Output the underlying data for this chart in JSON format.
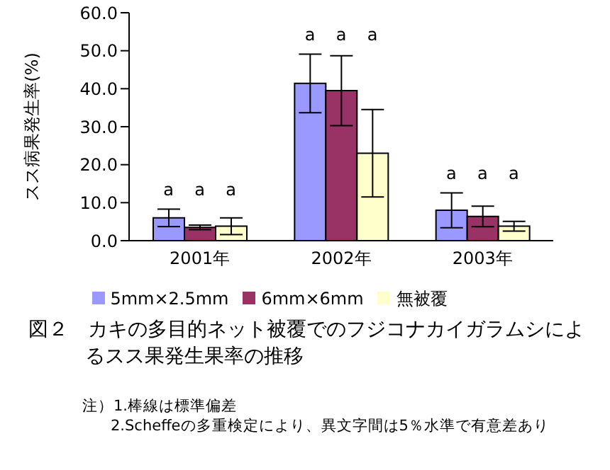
{
  "chart_data": {
    "type": "bar",
    "title": "図２　カキの多目的ネット被覆でのフジコナカイガラムシによるスス果発生果率の推移",
    "ylabel": "スス病果発生率(%)",
    "categories": [
      "2001年",
      "2002年",
      "2003年"
    ],
    "series": [
      {
        "name": "5mm×2.5mm",
        "color": "#9999ff",
        "values": [
          6.0,
          41.4,
          8.0
        ],
        "errors": [
          2.3,
          7.7,
          4.6
        ]
      },
      {
        "name": "6mm×6mm",
        "color": "#993366",
        "values": [
          3.5,
          39.5,
          6.4
        ],
        "errors": [
          0.6,
          9.2,
          2.7
        ]
      },
      {
        "name": "無被覆",
        "color": "#ffffcc",
        "values": [
          3.8,
          23.0,
          3.8
        ],
        "errors": [
          2.2,
          11.5,
          1.3
        ]
      }
    ],
    "ylim": [
      0,
      60
    ],
    "yticks": [
      {
        "value": 0,
        "label": "0.0"
      },
      {
        "value": 10,
        "label": "10.0"
      },
      {
        "value": 20,
        "label": "20.0"
      },
      {
        "value": 30,
        "label": "30.0"
      },
      {
        "value": 40,
        "label": "40.0"
      },
      {
        "value": 50,
        "label": "50.0"
      },
      {
        "value": 60,
        "label": "60.0"
      }
    ],
    "grid": false,
    "legend": "bottom",
    "annotations": [
      "a",
      "a",
      "a",
      "a",
      "a",
      "a",
      "a",
      "a",
      "a",
      "注）1.棒線は標準偏差",
      "2.Scheffeの多重検定により、異文字間は5％水準で有意差あり"
    ]
  }
}
